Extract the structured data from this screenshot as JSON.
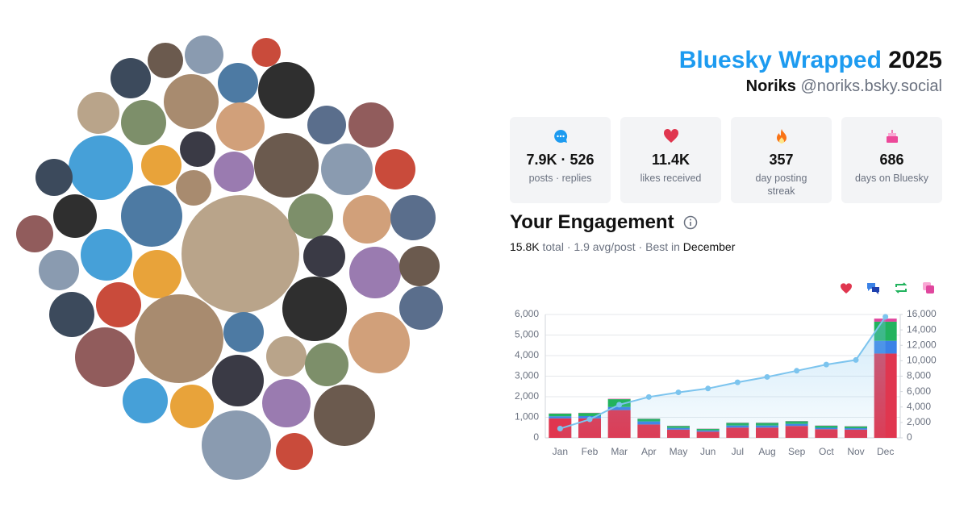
{
  "header": {
    "title_brand": "Bluesky Wrapped",
    "title_year": "2025",
    "name": "Noriks",
    "handle": "@noriks.bsky.social"
  },
  "stats": [
    {
      "value": "7.9K · 526",
      "label": "posts · replies"
    },
    {
      "value": "11.4K",
      "label": "likes received"
    },
    {
      "value": "357",
      "label": "day posting streak"
    },
    {
      "value": "686",
      "label": "days on Bluesky"
    }
  ],
  "engagement": {
    "heading": "Your Engagement",
    "total": "15.8K",
    "summary": "total · 1.9 avg/post · Best in",
    "best": "December"
  },
  "chart_data": {
    "type": "bar",
    "stacked": true,
    "categories": [
      "Jan",
      "Feb",
      "Mar",
      "Apr",
      "May",
      "Jun",
      "Jul",
      "Aug",
      "Sep",
      "Oct",
      "Nov",
      "Dec"
    ],
    "series": [
      {
        "color": "#e0364f",
        "values": [
          950,
          950,
          1350,
          650,
          400,
          300,
          500,
          500,
          580,
          420,
          400,
          4100
        ]
      },
      {
        "color": "#3b82e6",
        "values": [
          100,
          110,
          150,
          150,
          80,
          60,
          100,
          100,
          100,
          70,
          70,
          620
        ]
      },
      {
        "color": "#22b35e",
        "values": [
          130,
          150,
          380,
          130,
          100,
          80,
          130,
          130,
          130,
          100,
          90,
          930
        ]
      },
      {
        "color": "#e0479e",
        "values": [
          10,
          10,
          20,
          10,
          10,
          10,
          10,
          10,
          10,
          10,
          10,
          150
        ]
      },
      {
        "type": "line",
        "axis": "y2",
        "color": "#7cc4ee",
        "values": [
          1200,
          2400,
          4300,
          5300,
          5900,
          6400,
          7200,
          7900,
          8700,
          9500,
          10100,
          15700
        ]
      }
    ],
    "ylim": [
      0,
      6000
    ],
    "yticks": [
      0,
      {
        "value": 1000,
        "label": "1,000"
      },
      {
        "value": 2000,
        "label": "2,000"
      },
      {
        "value": 3000,
        "label": "3,000"
      },
      {
        "value": 4000,
        "label": "4,000"
      },
      {
        "value": 5000,
        "label": "5,000"
      },
      {
        "value": 6000,
        "label": "6,000"
      }
    ],
    "y2lim": [
      0,
      16000
    ],
    "y2ticks": [
      0,
      {
        "value": 2000,
        "label": "2,000"
      },
      {
        "value": 4000,
        "label": "4,000"
      },
      {
        "value": 6000,
        "label": "6,000"
      },
      {
        "value": 8000,
        "label": "8,000"
      },
      {
        "value": 10000,
        "label": "10,000"
      },
      {
        "value": 12000,
        "label": "12,000"
      },
      {
        "value": 14000,
        "label": "14,000"
      },
      {
        "value": 16000,
        "label": "16,000"
      }
    ],
    "grid": true
  }
}
